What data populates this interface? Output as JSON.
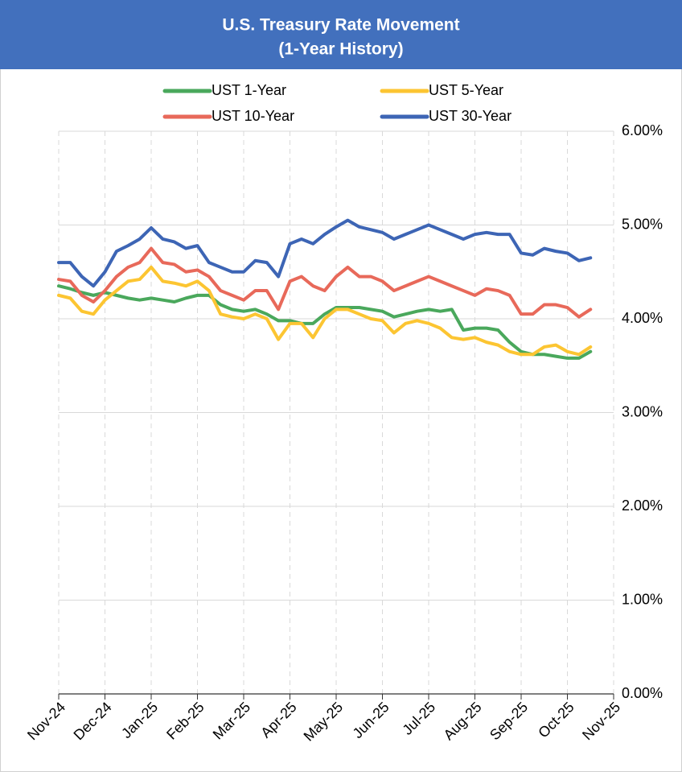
{
  "chart_data": {
    "type": "line",
    "title": "U.S. Treasury Rate Movement",
    "subtitle": "(1-Year History)",
    "categories": [
      "Nov-24",
      null,
      null,
      null,
      "Dec-24",
      null,
      null,
      null,
      "Jan-25",
      null,
      null,
      null,
      "Feb-25",
      null,
      null,
      null,
      "Mar-25",
      null,
      null,
      null,
      "Apr-25",
      null,
      null,
      null,
      "May-25",
      null,
      null,
      null,
      "Jun-25",
      null,
      null,
      null,
      "Jul-25",
      null,
      null,
      null,
      "Aug-25",
      null,
      null,
      null,
      "Sep-25",
      null,
      null,
      null,
      "Oct-25",
      null,
      null,
      null,
      "Nov-25"
    ],
    "series": [
      {
        "name": "UST 1-Year",
        "color": "#4aa85c",
        "values": [
          4.35,
          4.32,
          4.28,
          4.25,
          4.28,
          4.25,
          4.22,
          4.2,
          4.22,
          4.2,
          4.18,
          4.22,
          4.25,
          4.25,
          4.15,
          4.1,
          4.08,
          4.1,
          4.05,
          3.98,
          3.98,
          3.95,
          3.95,
          4.05,
          4.12,
          4.12,
          4.12,
          4.1,
          4.08,
          4.02,
          4.05,
          4.08,
          4.1,
          4.08,
          4.1,
          3.88,
          3.9,
          3.9,
          3.88,
          3.75,
          3.65,
          3.62,
          3.62,
          3.6,
          3.58,
          3.58,
          3.65,
          null,
          null
        ]
      },
      {
        "name": "UST 5-Year",
        "color": "#fcc532",
        "values": [
          4.25,
          4.22,
          4.08,
          4.05,
          4.2,
          4.3,
          4.4,
          4.42,
          4.55,
          4.4,
          4.38,
          4.35,
          4.4,
          4.3,
          4.05,
          4.02,
          4.0,
          4.05,
          4.0,
          3.78,
          3.95,
          3.95,
          3.8,
          4.0,
          4.1,
          4.1,
          4.05,
          4.0,
          3.98,
          3.85,
          3.95,
          3.98,
          3.95,
          3.9,
          3.8,
          3.78,
          3.8,
          3.75,
          3.72,
          3.65,
          3.62,
          3.62,
          3.7,
          3.72,
          3.65,
          3.62,
          3.7,
          null,
          null
        ]
      },
      {
        "name": "UST 10-Year",
        "color": "#e8695a",
        "values": [
          4.42,
          4.4,
          4.25,
          4.18,
          4.3,
          4.45,
          4.55,
          4.6,
          4.75,
          4.6,
          4.58,
          4.5,
          4.52,
          4.45,
          4.3,
          4.25,
          4.2,
          4.3,
          4.3,
          4.1,
          4.4,
          4.45,
          4.35,
          4.3,
          4.45,
          4.55,
          4.45,
          4.45,
          4.4,
          4.3,
          4.35,
          4.4,
          4.45,
          4.4,
          4.35,
          4.3,
          4.25,
          4.32,
          4.3,
          4.25,
          4.05,
          4.05,
          4.15,
          4.15,
          4.12,
          4.02,
          4.1,
          null,
          null
        ]
      },
      {
        "name": "UST 30-Year",
        "color": "#3d65b5",
        "values": [
          4.6,
          4.6,
          4.45,
          4.35,
          4.5,
          4.72,
          4.78,
          4.85,
          4.97,
          4.85,
          4.82,
          4.75,
          4.78,
          4.6,
          4.55,
          4.5,
          4.5,
          4.62,
          4.6,
          4.45,
          4.8,
          4.85,
          4.8,
          4.9,
          4.98,
          5.05,
          4.98,
          4.95,
          4.92,
          4.85,
          4.9,
          4.95,
          5.0,
          4.95,
          4.9,
          4.85,
          4.9,
          4.92,
          4.9,
          4.9,
          4.7,
          4.68,
          4.75,
          4.72,
          4.7,
          4.62,
          4.65,
          null,
          null
        ]
      }
    ],
    "ylim": [
      0,
      6
    ],
    "yticks": [
      {
        "value": 0,
        "label": "0.00%"
      },
      {
        "value": 1,
        "label": "1.00%"
      },
      {
        "value": 2,
        "label": "2.00%"
      },
      {
        "value": 3,
        "label": "3.00%"
      },
      {
        "value": 4,
        "label": "4.00%"
      },
      {
        "value": 5,
        "label": "5.00%"
      },
      {
        "value": 6,
        "label": "6.00%"
      }
    ],
    "grid": true,
    "legend": "top"
  }
}
